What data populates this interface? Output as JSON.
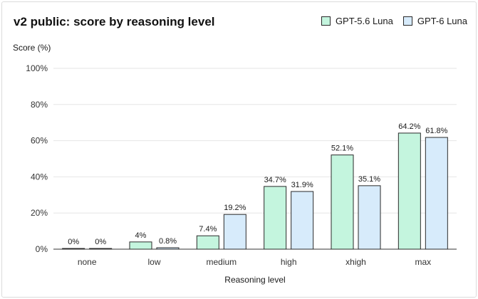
{
  "chart_data": {
    "type": "bar",
    "title": "v2 public: score by reasoning level",
    "ylabel": "Score (%)",
    "xlabel": "Reasoning level",
    "categories": [
      "none",
      "low",
      "medium",
      "high",
      "xhigh",
      "max"
    ],
    "series": [
      {
        "name": "GPT-5.6 Luna",
        "values": [
          0,
          4,
          7.4,
          34.7,
          52.1,
          64.2
        ],
        "labels": [
          "0%",
          "4%",
          "7.4%",
          "34.7%",
          "52.1%",
          "64.2%"
        ],
        "color": "#c4f5de"
      },
      {
        "name": "GPT-6 Luna",
        "values": [
          0,
          0.8,
          19.2,
          31.9,
          35.1,
          61.8
        ],
        "labels": [
          "0%",
          "0.8%",
          "19.2%",
          "31.9%",
          "35.1%",
          "61.8%"
        ],
        "color": "#d7ebfb"
      }
    ],
    "ylim": [
      0,
      100
    ],
    "yticks": [
      0,
      20,
      40,
      60,
      80,
      100
    ],
    "ytick_labels": [
      "0%",
      "20%",
      "40%",
      "60%",
      "80%",
      "100%"
    ],
    "grid": true,
    "legend": "top-right"
  }
}
